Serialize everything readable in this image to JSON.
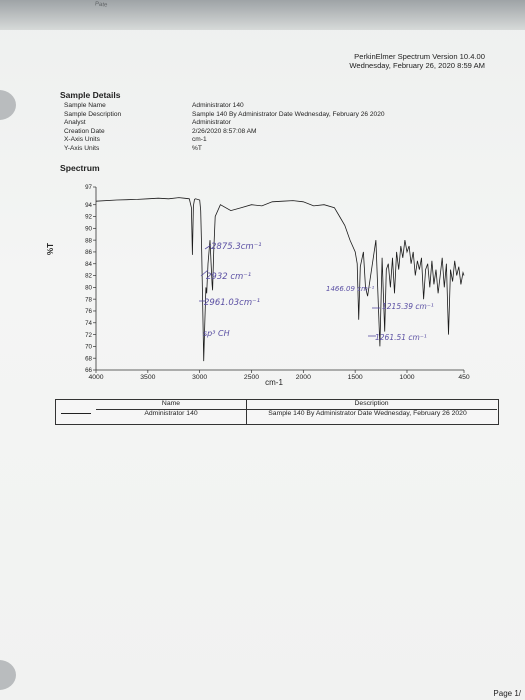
{
  "fold_text": "Pate",
  "header": {
    "software": "PerkinElmer Spectrum Version 10.4.00",
    "datetime": "Wednesday, February 26, 2020 8:59 AM"
  },
  "sample_details": {
    "title": "Sample Details",
    "labels": [
      "Sample Name",
      "Sample Description",
      "Analyst",
      "Creation Date",
      "X-Axis Units",
      "Y-Axis Units"
    ],
    "values": [
      "Administrator 140",
      "Sample 140 By Administrator Date Wednesday, February 26 2020",
      "Administrator",
      "2/26/2020 8:57:08 AM",
      "cm-1",
      "%T"
    ]
  },
  "spectrum_title": "Spectrum",
  "chart_data": {
    "type": "line",
    "title": "",
    "xlabel": "cm-1",
    "ylabel": "%T",
    "x_reversed": true,
    "xlim": [
      4000,
      450
    ],
    "ylim": [
      66,
      97
    ],
    "x_ticks": [
      "4000",
      "3500",
      "3000",
      "2500",
      "2000",
      "1500",
      "1000",
      "450"
    ],
    "x_tick_values": [
      4000,
      3500,
      3000,
      2500,
      2000,
      1500,
      1000,
      450
    ],
    "y_ticks": [
      "97",
      "94",
      "92",
      "90",
      "88",
      "86",
      "84",
      "82",
      "80",
      "78",
      "76",
      "74",
      "72",
      "70",
      "68",
      "66"
    ],
    "y_tick_values": [
      97,
      94,
      92,
      90,
      88,
      86,
      84,
      82,
      80,
      78,
      76,
      74,
      72,
      70,
      68,
      66
    ],
    "series": [
      {
        "x": [
          4000,
          3800,
          3600,
          3500,
          3400,
          3300,
          3200,
          3150,
          3100,
          3080,
          3070,
          3060,
          3050,
          3040,
          3000,
          2990,
          2980,
          2970,
          2961,
          2950,
          2940,
          2932,
          2920,
          2900,
          2890,
          2880,
          2875,
          2865,
          2850,
          2800,
          2700,
          2600,
          2500,
          2400,
          2300,
          2200,
          2100,
          2000,
          1900,
          1800,
          1700,
          1650,
          1600,
          1550,
          1500,
          1480,
          1466,
          1450,
          1420,
          1400,
          1380,
          1300,
          1261,
          1240,
          1215,
          1200,
          1180,
          1160,
          1140,
          1120,
          1100,
          1080,
          1060,
          1040,
          1020,
          1000,
          980,
          960,
          940,
          920,
          900,
          880,
          860,
          840,
          820,
          800,
          780,
          760,
          740,
          720,
          700,
          680,
          660,
          640,
          620,
          600,
          580,
          560,
          540,
          520,
          500,
          480,
          460,
          450
        ],
        "y": [
          94.6,
          94.8,
          94.9,
          95.0,
          95.1,
          95.0,
          95.2,
          95.1,
          95.0,
          93.5,
          85.5,
          93.8,
          94.9,
          95.0,
          94.8,
          93.0,
          86.0,
          76.0,
          67.5,
          74.0,
          80.0,
          79.0,
          84.0,
          88.0,
          84.0,
          80.5,
          79.5,
          86.0,
          92.0,
          94.0,
          93.0,
          93.5,
          94.0,
          93.8,
          94.5,
          94.6,
          94.7,
          94.5,
          93.8,
          94.0,
          93.5,
          92.0,
          90.5,
          88.0,
          86.0,
          84.0,
          74.5,
          83.5,
          86.0,
          80.0,
          78.5,
          88.0,
          70.0,
          85.0,
          72.5,
          83.0,
          84.0,
          80.0,
          85.0,
          79.0,
          86.0,
          83.0,
          87.0,
          85.0,
          88.0,
          86.0,
          87.0,
          84.0,
          86.0,
          82.0,
          84.5,
          83.0,
          85.0,
          78.0,
          83.0,
          84.0,
          80.0,
          84.5,
          80.5,
          83.0,
          79.0,
          82.0,
          85.0,
          80.0,
          84.0,
          72.0,
          83.0,
          81.0,
          84.5,
          82.0,
          83.5,
          80.5,
          82.5,
          82.0
        ]
      }
    ],
    "annotations": [
      "2875.3cm⁻¹",
      "2932 cm⁻¹",
      "2961.03cm⁻¹",
      "sp³ CH",
      "1466.09 cm⁻¹",
      "1215.39 cm⁻¹",
      "1261.51 cm⁻¹"
    ]
  },
  "legend": {
    "name_header": "Name",
    "name_value": "Administrator 140",
    "desc_header": "Description",
    "desc_value": "Sample 140 By Administrator Date Wednesday, February 26 2020",
    "line_color": "#222222"
  },
  "page_label": "Page 1/"
}
